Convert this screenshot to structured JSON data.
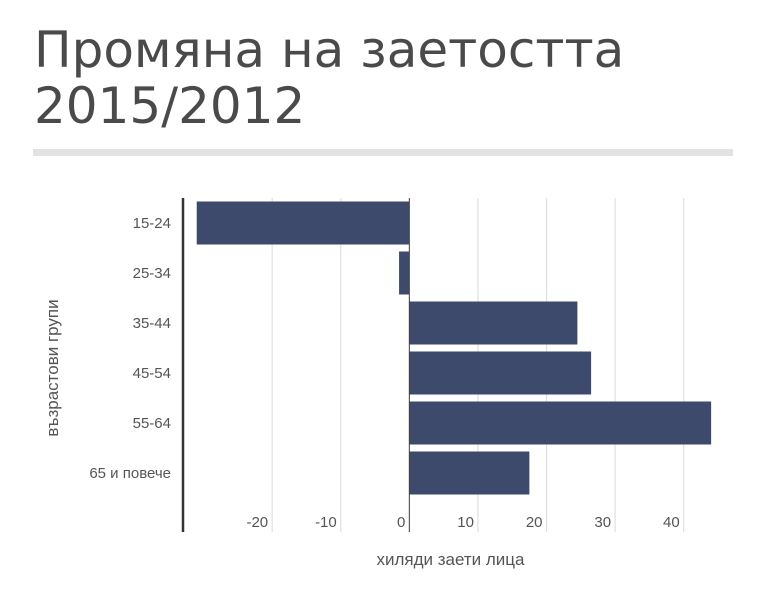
{
  "chart_data": {
    "type": "bar",
    "orientation": "horizontal",
    "title_lines": [
      "Промяна на заетостта",
      "2015/2012"
    ],
    "xlabel": "хиляди заети лица",
    "ylabel": "възрастови групи",
    "categories": [
      "15-24",
      "25-34",
      "35-44",
      "45-54",
      "55-64",
      "65 и повече"
    ],
    "values": [
      -31,
      -1.5,
      24.5,
      26.5,
      44,
      17.5
    ],
    "xlim": [
      -33,
      45
    ],
    "xticks": [
      -20,
      -10,
      0,
      10,
      20,
      30,
      40
    ],
    "grid": true,
    "colors": {
      "bar": "#3d4a6b",
      "grid": "#e0e0e0",
      "axis": "#444444"
    }
  }
}
